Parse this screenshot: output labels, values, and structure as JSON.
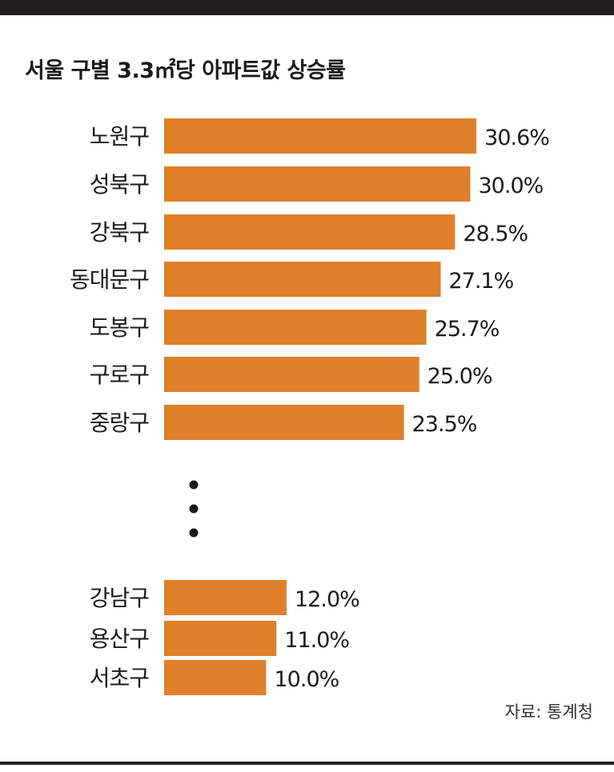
{
  "chart_data": {
    "type": "bar",
    "orientation": "horizontal",
    "title": "서울 구별 3.3㎡당 아파트값 상승률",
    "unit": "%",
    "bar_color": "#e07f2a",
    "categories": [
      "노원구",
      "성북구",
      "강북구",
      "동대문구",
      "도봉구",
      "구로구",
      "중랑구",
      "강남구",
      "용산구",
      "서초구"
    ],
    "values": [
      30.6,
      30.0,
      28.5,
      27.1,
      25.7,
      25.0,
      23.5,
      12.0,
      11.0,
      10.0
    ],
    "value_labels": [
      "30.6%",
      "30.0%",
      "28.5%",
      "27.1%",
      "25.7%",
      "25.0%",
      "23.5%",
      "12.0%",
      "11.0%",
      "10.0%"
    ],
    "omission_marker": "⋮",
    "source": "자료: 통계청",
    "grid": false,
    "legend": "none"
  }
}
